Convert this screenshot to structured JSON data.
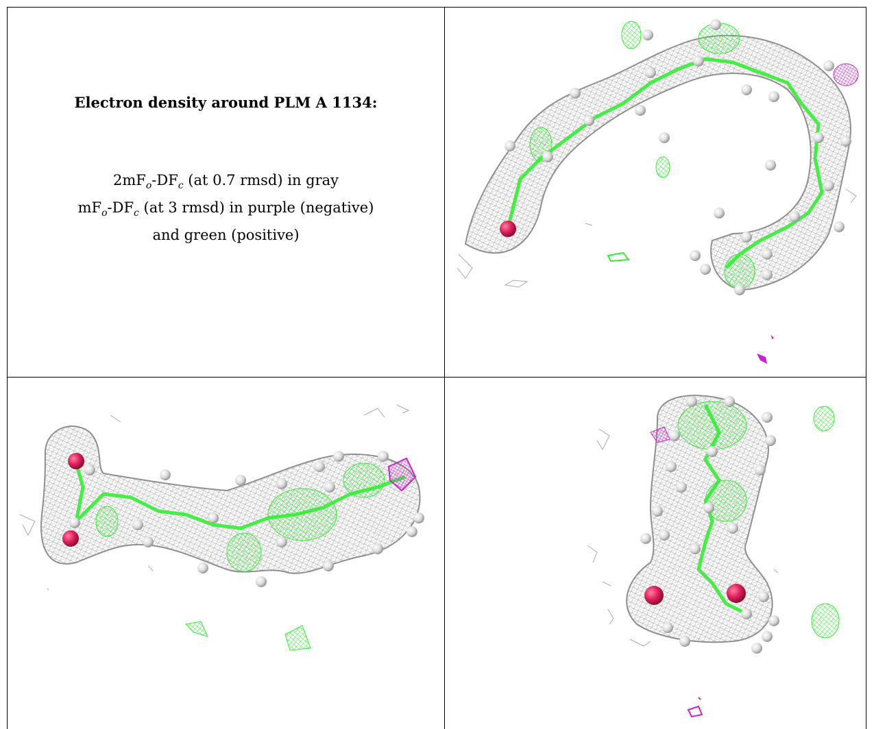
{
  "title": "Electron density around PLM A 1134:",
  "legend": {
    "line1": {
      "a": "2mF",
      "a_sub": "o",
      "b": "-DF",
      "b_sub": "c",
      "rest": " (at 0.7 rmsd) in gray"
    },
    "line2": {
      "a": "mF",
      "a_sub": "o",
      "b": "-DF",
      "b_sub": "c",
      "rest": " (at 3 rmsd) in purple (negative)"
    },
    "line3": "and green (positive)"
  },
  "colors": {
    "map_2fofc": "#9a9a9a",
    "map_fofc_positive": "#33ee33",
    "map_fofc_negative": "#cc22cc",
    "oxygen": "#e0205a",
    "hydrogen": "#e4e4e4",
    "carbon": "#44ee44"
  },
  "views": [
    {
      "name": "view-1",
      "description_icon": "density-view-icon"
    },
    {
      "name": "view-2",
      "description_icon": "density-view-icon"
    },
    {
      "name": "view-3",
      "description_icon": "density-view-icon"
    }
  ]
}
